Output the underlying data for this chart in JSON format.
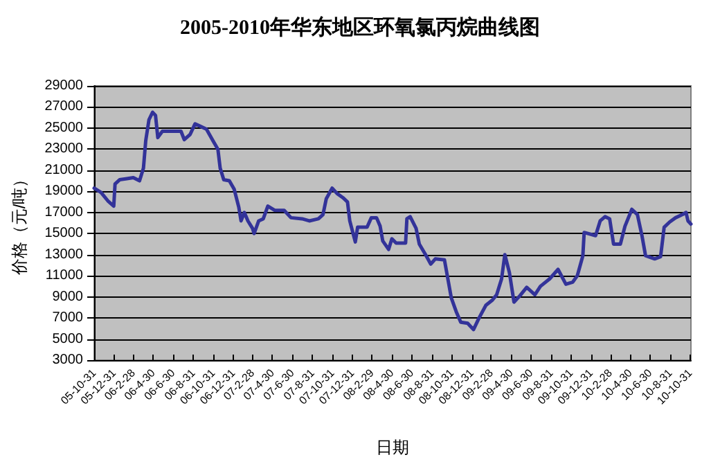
{
  "chart_data": {
    "type": "line",
    "title": "2005-2010年华东地区环氧氯丙烷曲线图",
    "xlabel": "日期",
    "ylabel": "价格（元/吨）",
    "x": [
      "2005-10-31",
      "2005-11-21",
      "2005-12-12",
      "2005-12-30",
      "2006-01-03",
      "2006-01-17",
      "2006-02-08",
      "2006-02-28",
      "2006-03-19",
      "2006-03-31",
      "2006-04-07",
      "2006-04-17",
      "2006-04-28",
      "2006-05-07",
      "2006-05-14",
      "2006-05-28",
      "2006-07-24",
      "2006-08-03",
      "2006-08-21",
      "2006-09-05",
      "2006-09-19",
      "2006-10-10",
      "2006-10-30",
      "2006-11-14",
      "2006-11-21",
      "2006-12-02",
      "2006-12-19",
      "2007-01-03",
      "2007-01-17",
      "2007-01-24",
      "2007-02-03",
      "2007-02-14",
      "2007-02-28",
      "2007-03-05",
      "2007-03-19",
      "2007-04-02",
      "2007-04-16",
      "2007-05-07",
      "2007-06-05",
      "2007-06-26",
      "2007-07-30",
      "2007-08-21",
      "2007-09-18",
      "2007-10-02",
      "2007-10-12",
      "2007-10-30",
      "2007-11-14",
      "2007-12-02",
      "2007-12-16",
      "2007-12-23",
      "2008-01-09",
      "2008-01-16",
      "2008-02-14",
      "2008-02-27",
      "2008-03-14",
      "2008-03-25",
      "2008-04-02",
      "2008-04-20",
      "2008-04-30",
      "2008-05-13",
      "2008-06-11",
      "2008-06-15",
      "2008-06-25",
      "2008-07-13",
      "2008-07-23",
      "2008-08-13",
      "2008-08-27",
      "2008-09-10",
      "2008-10-08",
      "2008-10-29",
      "2008-11-13",
      "2008-11-27",
      "2008-12-18",
      "2009-01-05",
      "2009-01-22",
      "2009-02-12",
      "2009-03-04",
      "2009-03-17",
      "2009-04-01",
      "2009-04-11",
      "2009-04-25",
      "2009-05-09",
      "2009-05-27",
      "2009-06-17",
      "2009-07-12",
      "2009-07-29",
      "2009-08-26",
      "2009-09-21",
      "2009-10-15",
      "2009-11-05",
      "2009-11-19",
      "2009-12-06",
      "2009-12-10",
      "2010-01-14",
      "2010-01-28",
      "2010-02-12",
      "2010-02-26",
      "2010-03-10",
      "2010-03-31",
      "2010-04-14",
      "2010-05-05",
      "2010-05-22",
      "2010-06-05",
      "2010-06-16",
      "2010-07-14",
      "2010-08-01",
      "2010-08-12",
      "2010-08-29",
      "2010-09-16",
      "2010-10-07",
      "2010-10-18",
      "2010-10-24",
      "2010-11-02"
    ],
    "series": [
      {
        "color": "#333399",
        "values": [
          19300,
          18900,
          18100,
          17600,
          19700,
          20100,
          20200,
          20300,
          20000,
          21200,
          23800,
          25800,
          26500,
          26200,
          24100,
          24700,
          24700,
          23900,
          24400,
          25400,
          25200,
          24900,
          23800,
          23000,
          21200,
          20100,
          20000,
          19200,
          17500,
          16200,
          17000,
          16200,
          15500,
          15000,
          16200,
          16400,
          17600,
          17200,
          17200,
          16500,
          16400,
          16200,
          16400,
          16800,
          18300,
          19300,
          18800,
          18400,
          18000,
          16200,
          14200,
          15600,
          15600,
          16500,
          16500,
          15700,
          14300,
          13500,
          14500,
          14100,
          14100,
          16400,
          16600,
          15500,
          14000,
          12900,
          12100,
          12600,
          12500,
          8900,
          7600,
          6600,
          6500,
          5900,
          7000,
          8200,
          8700,
          9200,
          10700,
          13000,
          11300,
          8500,
          9100,
          9900,
          9200,
          10000,
          10700,
          11600,
          10200,
          10400,
          11000,
          12900,
          15100,
          14800,
          16200,
          16600,
          16400,
          14000,
          14000,
          15700,
          17300,
          16800,
          14800,
          12900,
          12600,
          12800,
          15600,
          16100,
          16500,
          16800,
          17000,
          16200,
          15900
        ]
      }
    ],
    "xlim": [
      "2005-10-31",
      "2010-11-02"
    ],
    "xticks": [
      {
        "value": "2005-10-31",
        "label": "05-10-31"
      },
      {
        "value": "2005-12-31",
        "label": "05-12-31"
      },
      {
        "value": "2006-02-28",
        "label": "06-2-28"
      },
      {
        "value": "2006-04-30",
        "label": "06-4-30"
      },
      {
        "value": "2006-06-30",
        "label": "06-6-30"
      },
      {
        "value": "2006-08-31",
        "label": "06-8-31"
      },
      {
        "value": "2006-10-31",
        "label": "06-10-31"
      },
      {
        "value": "2006-12-31",
        "label": "06-12-31"
      },
      {
        "value": "2007-02-28",
        "label": "07-2-28"
      },
      {
        "value": "2007-04-30",
        "label": "07-4-30"
      },
      {
        "value": "2007-06-30",
        "label": "07-6-30"
      },
      {
        "value": "2007-08-31",
        "label": "07-8-31"
      },
      {
        "value": "2007-10-31",
        "label": "07-10-31"
      },
      {
        "value": "2007-12-31",
        "label": "07-12-31"
      },
      {
        "value": "2008-02-29",
        "label": "08-2-29"
      },
      {
        "value": "2008-04-30",
        "label": "08-4-30"
      },
      {
        "value": "2008-06-30",
        "label": "08-6-30"
      },
      {
        "value": "2008-08-31",
        "label": "08-8-31"
      },
      {
        "value": "2008-10-31",
        "label": "08-10-31"
      },
      {
        "value": "2008-12-31",
        "label": "08-12-31"
      },
      {
        "value": "2009-02-28",
        "label": "09-2-28"
      },
      {
        "value": "2009-04-30",
        "label": "09-4-30"
      },
      {
        "value": "2009-06-30",
        "label": "09-6-30"
      },
      {
        "value": "2009-08-31",
        "label": "09-8-31"
      },
      {
        "value": "2009-10-31",
        "label": "09-10-31"
      },
      {
        "value": "2009-12-31",
        "label": "09-12-31"
      },
      {
        "value": "2010-02-28",
        "label": "10-2-28"
      },
      {
        "value": "2010-04-30",
        "label": "10-4-30"
      },
      {
        "value": "2010-06-30",
        "label": "10-6-30"
      },
      {
        "value": "2010-08-31",
        "label": "10-8-31"
      },
      {
        "value": "2010-10-31",
        "label": "10-10-31"
      }
    ],
    "ylim": [
      3000,
      29000
    ],
    "yticks": [
      3000,
      5000,
      7000,
      9000,
      11000,
      13000,
      15000,
      17000,
      19000,
      21000,
      23000,
      25000,
      27000,
      29000
    ],
    "grid": "y",
    "marker": "none",
    "line_style": "solid"
  }
}
